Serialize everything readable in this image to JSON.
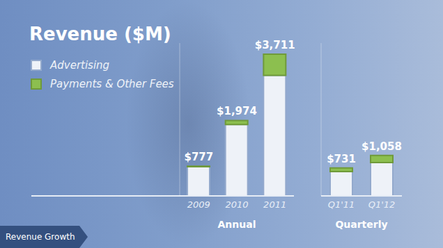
{
  "chart_data": [
    {
      "type": "bar",
      "title": "Revenue ($M)",
      "xlabel": "Annual",
      "categories": [
        "2009",
        "2010",
        "2011"
      ],
      "series": [
        {
          "name": "Advertising",
          "color": "#eef2f8",
          "values": [
            764,
            1868,
            3154
          ]
        },
        {
          "name": "Payments & Other Fees",
          "color": "#8cbf4f",
          "values": [
            13,
            106,
            557
          ]
        }
      ],
      "totals": [
        777,
        1974,
        3711
      ],
      "total_labels": [
        "$777",
        "$1,974",
        "$3,711"
      ],
      "stacked": true,
      "ylim": [
        0,
        4000
      ],
      "yticks": [
        0,
        4000
      ],
      "tick_labels": "x",
      "legend": "top-left",
      "grid": false
    },
    {
      "type": "bar",
      "xlabel": "Quarterly",
      "categories": [
        "Q1'11",
        "Q1'12"
      ],
      "series": [
        {
          "name": "Advertising",
          "color": "#eef2f8",
          "values": [
            637,
            872
          ]
        },
        {
          "name": "Payments & Other Fees",
          "color": "#8cbf4f",
          "values": [
            94,
            186
          ]
        }
      ],
      "totals": [
        731,
        1058
      ],
      "total_labels": [
        "$731",
        "$1,058"
      ],
      "stacked": true,
      "ylim": [
        0,
        4000
      ],
      "yticks": [
        0,
        4000
      ],
      "tick_labels": "x",
      "grid": false
    }
  ],
  "footer": "Revenue Growth"
}
